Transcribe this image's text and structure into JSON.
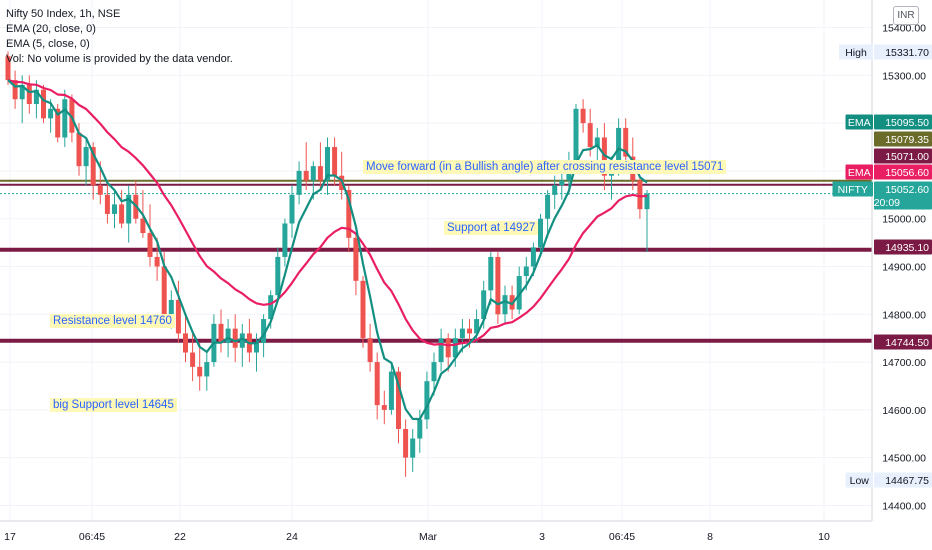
{
  "legend": {
    "symbol": "Nifty 50 Index, 1h, NSE",
    "ema20": "EMA (20, close, 0)",
    "ema5": "EMA (5, close, 0)",
    "vol": "Vol: No volume is provided by the data vendor."
  },
  "currency": "INR",
  "annotations": {
    "move_forward": "Move forward (in a Bullish angle) after crossing resistance level 15071",
    "support_14927": "Support at 14927",
    "resistance_14760": "Resistance level 14760",
    "big_support": "big Support level 14645"
  },
  "colors": {
    "up": "#26a69a",
    "down": "#ef5350",
    "ema20": "#e91e63",
    "ema5": "#138f82",
    "hline": "#7b1b45",
    "label_bg": "#fff9b8",
    "label_text": "#2962ff"
  },
  "chart_data": {
    "type": "candlestick",
    "y_range": [
      14380,
      15420
    ],
    "y_ticks": [
      "14400.00",
      "14500.00",
      "14600.00",
      "14700.00",
      "14800.00",
      "14900.00",
      "15000.00",
      "15100.00",
      "15200.00",
      "15300.00",
      "15400.00"
    ],
    "x_ticks": [
      "17",
      "06:45",
      "22",
      "24",
      "Mar",
      "3",
      "06:45",
      "8",
      "10"
    ],
    "price_tags": [
      {
        "label": "High",
        "value": "15331.70",
        "style": "plain"
      },
      {
        "label": "EMA",
        "value": "15095.50",
        "style": "ema5"
      },
      {
        "label": "",
        "value": "15079.35",
        "style": "olive"
      },
      {
        "label": "",
        "value": "15071.00",
        "style": "maroon"
      },
      {
        "label": "EMA",
        "value": "15056.60",
        "style": "ema20"
      },
      {
        "label": "NIFTY",
        "value": "15052.60",
        "style": "last",
        "sub": "20:09"
      },
      {
        "label": "",
        "value": "14935.10",
        "style": "maroon"
      },
      {
        "label": "",
        "value": "14744.50",
        "style": "maroon"
      },
      {
        "label": "Low",
        "value": "14467.75",
        "style": "plain"
      }
    ],
    "horizontal_levels": [
      15079.35,
      15071,
      14935.1,
      14744.5
    ],
    "last_price": 15052.6,
    "candles": [
      [
        15340,
        15350,
        15280,
        15290
      ],
      [
        15290,
        15310,
        15230,
        15250
      ],
      [
        15250,
        15300,
        15200,
        15280
      ],
      [
        15280,
        15300,
        15220,
        15240
      ],
      [
        15240,
        15290,
        15210,
        15270
      ],
      [
        15270,
        15280,
        15200,
        15210
      ],
      [
        15210,
        15250,
        15180,
        15230
      ],
      [
        15230,
        15240,
        15160,
        15170
      ],
      [
        15170,
        15270,
        15150,
        15250
      ],
      [
        15250,
        15260,
        15160,
        15180
      ],
      [
        15180,
        15200,
        15090,
        15110
      ],
      [
        15110,
        15170,
        15070,
        15150
      ],
      [
        15150,
        15160,
        15040,
        15070
      ],
      [
        15070,
        15120,
        15030,
        15050
      ],
      [
        15050,
        15080,
        14990,
        15010
      ],
      [
        15010,
        15060,
        14980,
        15030
      ],
      [
        15030,
        15060,
        14980,
        14990
      ],
      [
        14990,
        15070,
        14950,
        15050
      ],
      [
        15050,
        15080,
        14990,
        15000
      ],
      [
        15000,
        15060,
        14960,
        14970
      ],
      [
        14970,
        15030,
        14900,
        14920
      ],
      [
        14920,
        14960,
        14870,
        14900
      ],
      [
        14900,
        14930,
        14780,
        14800
      ],
      [
        14800,
        14850,
        14770,
        14830
      ],
      [
        14830,
        14870,
        14740,
        14760
      ],
      [
        14760,
        14800,
        14700,
        14720
      ],
      [
        14720,
        14760,
        14660,
        14690
      ],
      [
        14690,
        14740,
        14640,
        14670
      ],
      [
        14670,
        14720,
        14640,
        14700
      ],
      [
        14700,
        14800,
        14690,
        14780
      ],
      [
        14780,
        14810,
        14720,
        14740
      ],
      [
        14740,
        14790,
        14710,
        14770
      ],
      [
        14770,
        14800,
        14700,
        14730
      ],
      [
        14730,
        14780,
        14690,
        14760
      ],
      [
        14760,
        14790,
        14700,
        14720
      ],
      [
        14720,
        14760,
        14680,
        14740
      ],
      [
        14740,
        14800,
        14710,
        14790
      ],
      [
        14790,
        14850,
        14770,
        14840
      ],
      [
        14840,
        14940,
        14830,
        14920
      ],
      [
        14920,
        15000,
        14900,
        14990
      ],
      [
        14990,
        15070,
        14960,
        15050
      ],
      [
        15050,
        15120,
        15030,
        15100
      ],
      [
        15100,
        15160,
        15060,
        15080
      ],
      [
        15080,
        15120,
        15040,
        15110
      ],
      [
        15110,
        15160,
        15060,
        15080
      ],
      [
        15080,
        15170,
        15050,
        15150
      ],
      [
        15150,
        15170,
        15070,
        15090
      ],
      [
        15090,
        15140,
        15040,
        15060
      ],
      [
        15060,
        15070,
        14930,
        14960
      ],
      [
        14960,
        14970,
        14840,
        14870
      ],
      [
        14870,
        14880,
        14730,
        14750
      ],
      [
        14750,
        14780,
        14680,
        14700
      ],
      [
        14700,
        14720,
        14580,
        14610
      ],
      [
        14610,
        14640,
        14570,
        14600
      ],
      [
        14600,
        14700,
        14590,
        14680
      ],
      [
        14680,
        14690,
        14530,
        14560
      ],
      [
        14560,
        14580,
        14460,
        14500
      ],
      [
        14500,
        14560,
        14470,
        14540
      ],
      [
        14540,
        14600,
        14510,
        14580
      ],
      [
        14580,
        14680,
        14560,
        14660
      ],
      [
        14660,
        14720,
        14630,
        14700
      ],
      [
        14700,
        14770,
        14680,
        14750
      ],
      [
        14750,
        14760,
        14680,
        14710
      ],
      [
        14710,
        14770,
        14690,
        14750
      ],
      [
        14750,
        14790,
        14720,
        14770
      ],
      [
        14770,
        14790,
        14730,
        14760
      ],
      [
        14760,
        14810,
        14740,
        14790
      ],
      [
        14790,
        14870,
        14770,
        14850
      ],
      [
        14850,
        14930,
        14820,
        14920
      ],
      [
        14920,
        14930,
        14780,
        14800
      ],
      [
        14800,
        14860,
        14780,
        14840
      ],
      [
        14840,
        14860,
        14790,
        14810
      ],
      [
        14810,
        14900,
        14800,
        14880
      ],
      [
        14880,
        14920,
        14850,
        14900
      ],
      [
        14900,
        14950,
        14880,
        14940
      ],
      [
        14940,
        15010,
        14920,
        15000
      ],
      [
        15000,
        15060,
        14960,
        15050
      ],
      [
        15050,
        15090,
        15020,
        15070
      ],
      [
        15070,
        15100,
        15040,
        15080
      ],
      [
        15080,
        15140,
        15050,
        15120
      ],
      [
        15120,
        15240,
        15100,
        15230
      ],
      [
        15230,
        15250,
        15180,
        15200
      ],
      [
        15200,
        15230,
        15130,
        15150
      ],
      [
        15150,
        15190,
        15120,
        15170
      ],
      [
        15170,
        15200,
        15060,
        15090
      ],
      [
        15090,
        15130,
        15040,
        15110
      ],
      [
        15110,
        15210,
        15090,
        15190
      ],
      [
        15190,
        15210,
        15110,
        15130
      ],
      [
        15130,
        15170,
        15060,
        15080
      ],
      [
        15080,
        15090,
        15000,
        15020
      ],
      [
        15020,
        15060,
        14930,
        15052.6
      ]
    ]
  }
}
